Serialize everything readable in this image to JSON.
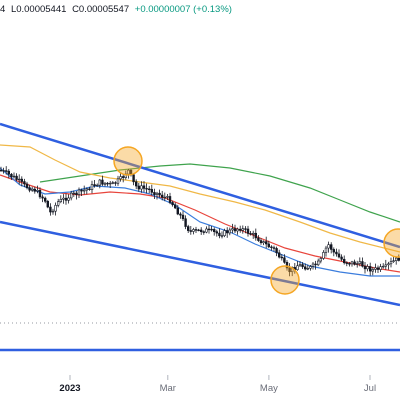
{
  "header": {
    "ohlc_fragment": "4",
    "low": "L0.00005441",
    "close": "C0.00005547",
    "change": "+0.00000007 (+0.13%)"
  },
  "chart_data": {
    "type": "candlestick",
    "x_ticks": [
      {
        "label": "2023",
        "bold": true,
        "date": "2023-01-01"
      },
      {
        "label": "Mar",
        "bold": false,
        "date": "2023-03-01"
      },
      {
        "label": "May",
        "bold": false,
        "date": "2023-05-01"
      },
      {
        "label": "Jul",
        "bold": false,
        "date": "2023-07-01"
      }
    ],
    "overlays": {
      "channel_upper_color": "#2f5fe0",
      "channel_lower_color": "#2f5fe0",
      "horizontal_line_color": "#2f5fe0",
      "ma_fast_color": "#3b7ddd",
      "ma_mid_color": "#e8453c",
      "ma_slow_color": "#f0b847",
      "ma_long_color": "#3fa34d",
      "highlight_color": "#f5a623"
    },
    "candle_up_color": "#131722",
    "candle_down_color": "#131722"
  }
}
